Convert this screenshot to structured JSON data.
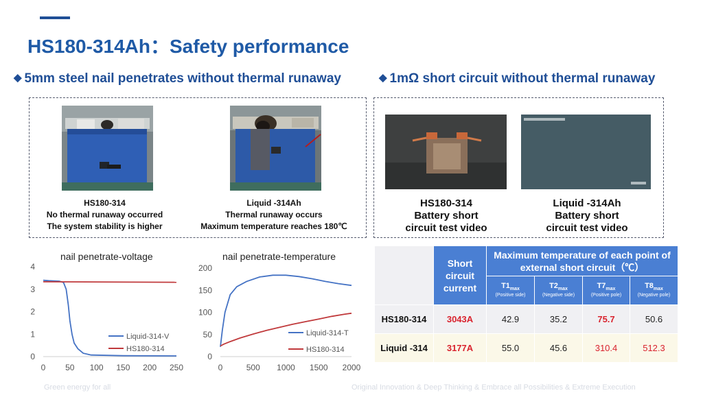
{
  "title": "HS180-314Ah：Safety performance",
  "left_section": {
    "heading": "5mm steel nail penetrates without thermal runaway",
    "items": [
      {
        "line1": "HS180-314",
        "line2": "No thermal runaway occurred",
        "line3": "The system stability is higher"
      },
      {
        "line1": "Liquid -314Ah",
        "line2": "Thermal runaway occurs",
        "line3": "Maximum temperature reaches 180℃"
      }
    ]
  },
  "right_section": {
    "heading": "1mΩ short circuit without thermal runaway",
    "videos": [
      {
        "line1": "HS180-314",
        "line2": "Battery short",
        "line3": "circuit test video"
      },
      {
        "line1": "Liquid -314Ah",
        "line2": "Battery short",
        "line3": "circuit test video"
      }
    ]
  },
  "chart_data": [
    {
      "type": "line",
      "title": "nail penetrate-voltage",
      "xlim": [
        0,
        250
      ],
      "ylim": [
        0,
        4
      ],
      "x_ticks": [
        "0",
        "50",
        "100",
        "150",
        "200",
        "250"
      ],
      "y_ticks": [
        "0",
        "1",
        "2",
        "3",
        "4"
      ],
      "series": [
        {
          "name": "Liquid-314-V",
          "color": "#4472c4",
          "points": [
            [
              0,
              3.4
            ],
            [
              10,
              3.38
            ],
            [
              30,
              3.36
            ],
            [
              38,
              3.3
            ],
            [
              43,
              3.0
            ],
            [
              47,
              2.3
            ],
            [
              50,
              1.6
            ],
            [
              54,
              1.0
            ],
            [
              58,
              0.6
            ],
            [
              65,
              0.35
            ],
            [
              75,
              0.15
            ],
            [
              90,
              0.07
            ],
            [
              150,
              0.04
            ],
            [
              250,
              0.03
            ]
          ]
        },
        {
          "name": "HS180-314",
          "color": "#c0393b",
          "points": [
            [
              0,
              3.33
            ],
            [
              250,
              3.31
            ]
          ]
        }
      ],
      "legend": "right"
    },
    {
      "type": "line",
      "title": "nail penetrate-temperature",
      "xlim": [
        0,
        2000
      ],
      "ylim": [
        0,
        200
      ],
      "x_ticks": [
        "0",
        "500",
        "1000",
        "1500",
        "2000"
      ],
      "y_ticks": [
        "0",
        "50",
        "100",
        "150",
        "200"
      ],
      "series": [
        {
          "name": "Liquid-314-T",
          "color": "#4472c4",
          "points": [
            [
              0,
              22
            ],
            [
              30,
              60
            ],
            [
              70,
              100
            ],
            [
              150,
              140
            ],
            [
              250,
              158
            ],
            [
              400,
              170
            ],
            [
              600,
              180
            ],
            [
              800,
              184
            ],
            [
              1000,
              184
            ],
            [
              1200,
              181
            ],
            [
              1400,
              176
            ],
            [
              1600,
              170
            ],
            [
              1800,
              165
            ],
            [
              2000,
              161
            ]
          ]
        },
        {
          "name": "HS180-314",
          "color": "#c0393b",
          "points": [
            [
              0,
              24
            ],
            [
              50,
              28
            ],
            [
              150,
              34
            ],
            [
              300,
              42
            ],
            [
              500,
              51
            ],
            [
              700,
              59
            ],
            [
              900,
              66
            ],
            [
              1100,
              73
            ],
            [
              1300,
              79
            ],
            [
              1500,
              85
            ],
            [
              1700,
              91
            ],
            [
              1900,
              96
            ],
            [
              2000,
              98
            ]
          ]
        }
      ],
      "legend": "right"
    }
  ],
  "table": {
    "col_header": "Short circuit current",
    "group_header": "Maximum temperature of each point of external short circuit（℃）",
    "sub_headers": [
      {
        "label": "T1",
        "sub": "max",
        "note": "(Positive side)"
      },
      {
        "label": "T2",
        "sub": "max",
        "note": "(Negative side)"
      },
      {
        "label": "T7",
        "sub": "max",
        "note": "(Positive pole)"
      },
      {
        "label": "T8",
        "sub": "max",
        "note": "(Negative pole)"
      }
    ],
    "rows": [
      {
        "name": "HS180-314",
        "current": "3043A",
        "values": [
          "42.9",
          "35.2",
          "75.7",
          "50.6"
        ]
      },
      {
        "name": "Liquid -314",
        "current": "3177A",
        "values": [
          "55.0",
          "45.6",
          "310.4",
          "512.3"
        ]
      }
    ]
  },
  "footer": {
    "left": "Green energy for all",
    "right": "Original Innovation & Deep Thinking & Embrace all Possibilities & Extreme Execution"
  },
  "colors": {
    "accent": "#1f4e96",
    "series_blue": "#4472c4",
    "series_red": "#c0393b",
    "table_header": "#4a7fd3",
    "highlight": "#d9232e"
  }
}
